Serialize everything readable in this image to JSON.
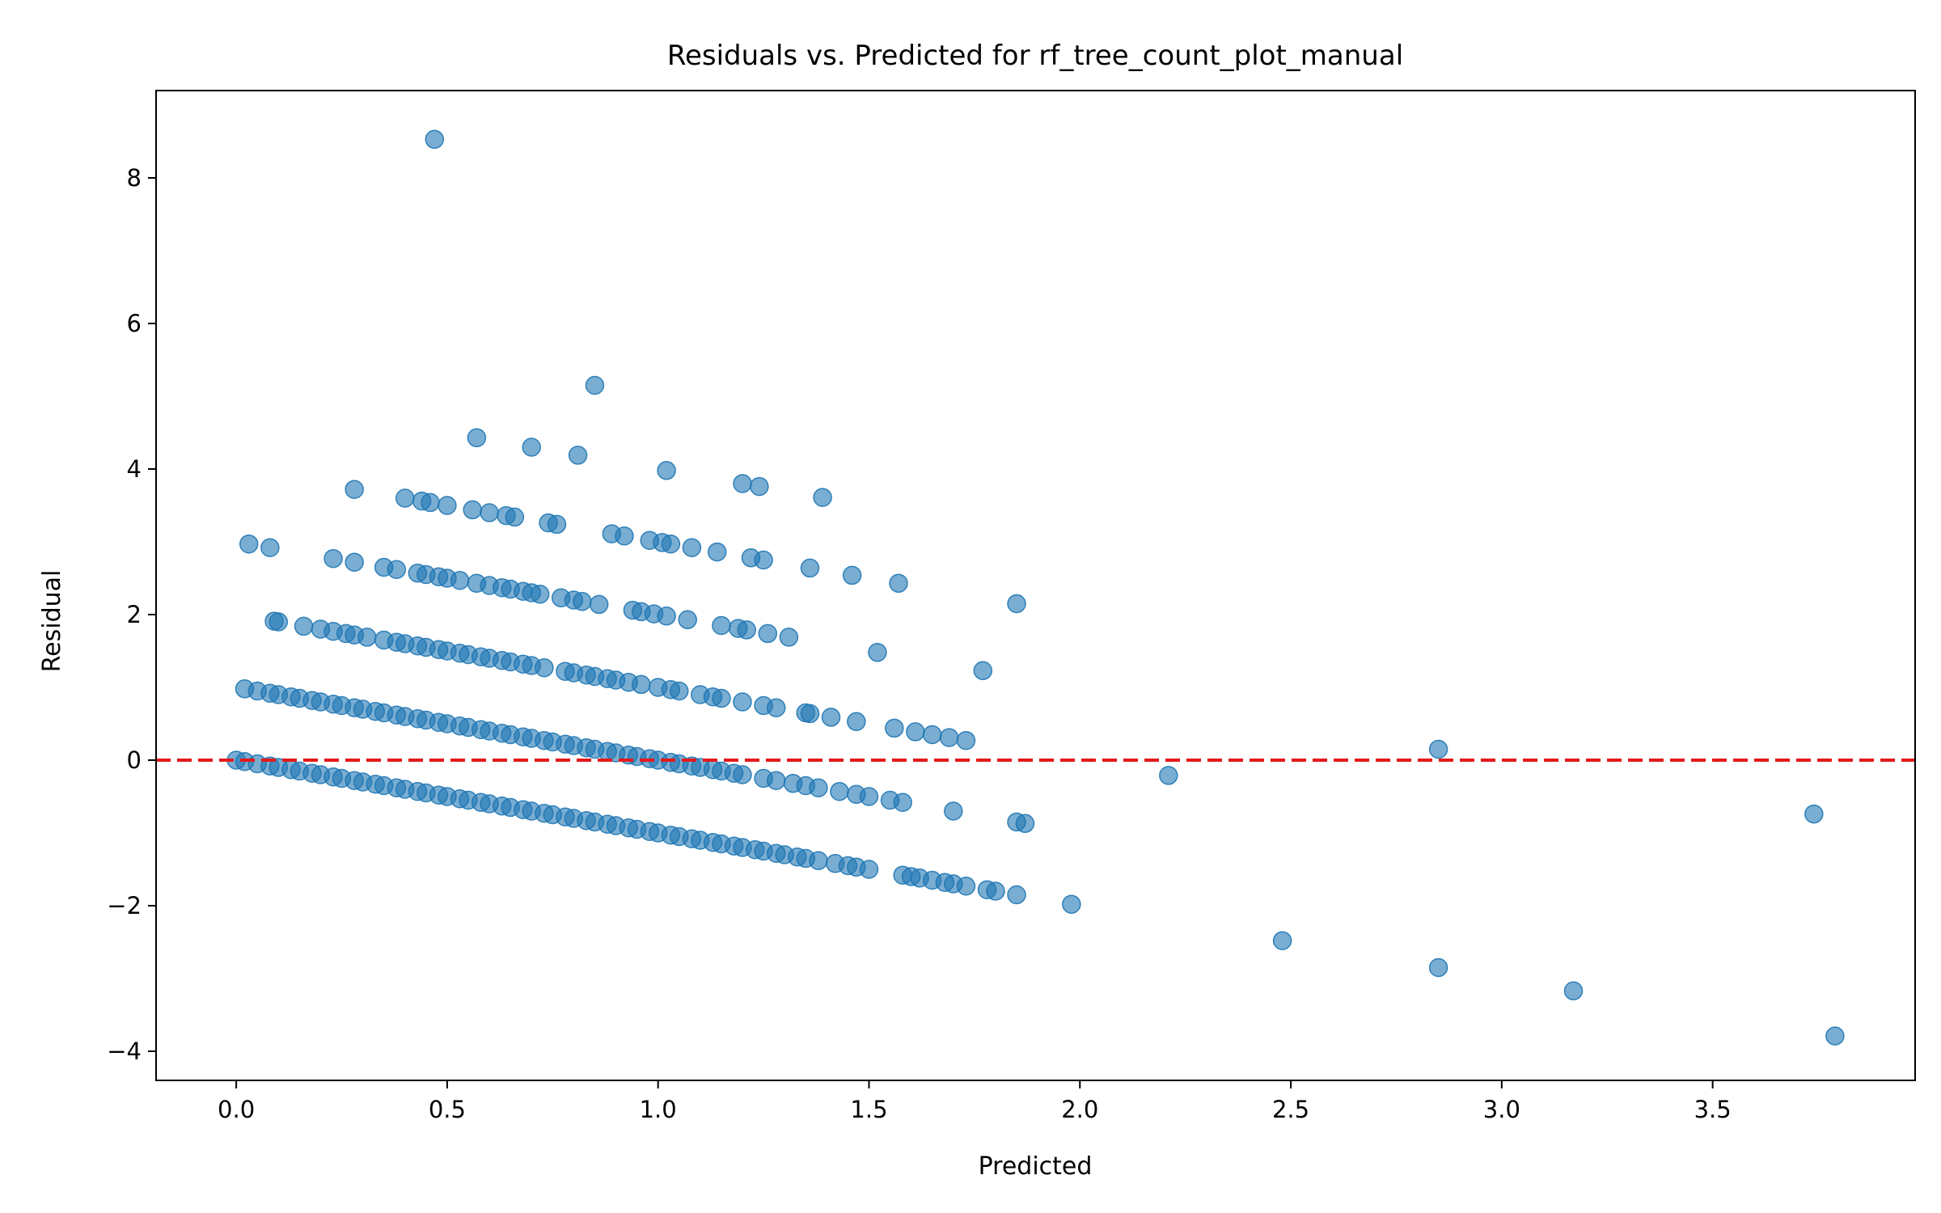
{
  "chart_data": {
    "type": "scatter",
    "title": "Residuals vs. Predicted for rf_tree_count_plot_manual",
    "xlabel": "Predicted",
    "ylabel": "Residual",
    "xlim": [
      -0.19,
      3.98
    ],
    "ylim": [
      -4.4,
      9.2
    ],
    "xticks": [
      0.0,
      0.5,
      1.0,
      1.5,
      2.0,
      2.5,
      3.0,
      3.5
    ],
    "xtick_labels": [
      "0.0",
      "0.5",
      "1.0",
      "1.5",
      "2.0",
      "2.5",
      "3.0",
      "3.5"
    ],
    "yticks": [
      -4,
      -2,
      0,
      2,
      4,
      6,
      8
    ],
    "ytick_labels": [
      "−4",
      "−2",
      "0",
      "2",
      "4",
      "6",
      "8"
    ],
    "grid": false,
    "reference_line": {
      "y": 0,
      "style": "dashed",
      "color": "#e41a1c"
    },
    "marker_color": "#1f77b4",
    "marker_alpha": 0.6,
    "series": [
      {
        "points": [
          [
            0.0,
            0.0
          ],
          [
            0.02,
            -0.02
          ],
          [
            0.05,
            -0.05
          ],
          [
            0.08,
            -0.08
          ],
          [
            0.1,
            -0.1
          ],
          [
            0.13,
            -0.13
          ],
          [
            0.15,
            -0.15
          ],
          [
            0.18,
            -0.18
          ],
          [
            0.2,
            -0.2
          ],
          [
            0.23,
            -0.23
          ],
          [
            0.25,
            -0.25
          ],
          [
            0.28,
            -0.28
          ],
          [
            0.3,
            -0.3
          ],
          [
            0.33,
            -0.33
          ],
          [
            0.35,
            -0.35
          ],
          [
            0.38,
            -0.38
          ],
          [
            0.4,
            -0.4
          ],
          [
            0.43,
            -0.43
          ],
          [
            0.45,
            -0.45
          ],
          [
            0.48,
            -0.48
          ],
          [
            0.5,
            -0.5
          ],
          [
            0.53,
            -0.53
          ],
          [
            0.55,
            -0.55
          ],
          [
            0.58,
            -0.58
          ],
          [
            0.6,
            -0.6
          ],
          [
            0.63,
            -0.63
          ],
          [
            0.65,
            -0.65
          ],
          [
            0.68,
            -0.68
          ],
          [
            0.7,
            -0.7
          ],
          [
            0.73,
            -0.73
          ],
          [
            0.75,
            -0.75
          ],
          [
            0.78,
            -0.78
          ],
          [
            0.8,
            -0.8
          ],
          [
            0.83,
            -0.83
          ],
          [
            0.85,
            -0.85
          ],
          [
            0.88,
            -0.88
          ],
          [
            0.9,
            -0.9
          ],
          [
            0.93,
            -0.93
          ],
          [
            0.95,
            -0.95
          ],
          [
            0.98,
            -0.98
          ],
          [
            1.0,
            -1.0
          ],
          [
            1.03,
            -1.03
          ],
          [
            1.05,
            -1.05
          ],
          [
            1.08,
            -1.08
          ],
          [
            1.1,
            -1.1
          ],
          [
            1.13,
            -1.13
          ],
          [
            1.15,
            -1.15
          ],
          [
            1.18,
            -1.18
          ],
          [
            1.2,
            -1.2
          ],
          [
            1.23,
            -1.23
          ],
          [
            1.25,
            -1.25
          ],
          [
            1.28,
            -1.28
          ],
          [
            1.3,
            -1.3
          ],
          [
            1.33,
            -1.33
          ],
          [
            1.35,
            -1.35
          ],
          [
            1.38,
            -1.38
          ],
          [
            1.42,
            -1.42
          ],
          [
            1.45,
            -1.45
          ],
          [
            1.47,
            -1.47
          ],
          [
            1.5,
            -1.5
          ],
          [
            1.58,
            -1.58
          ],
          [
            1.6,
            -1.6
          ],
          [
            1.62,
            -1.62
          ],
          [
            1.65,
            -1.65
          ],
          [
            1.68,
            -1.68
          ],
          [
            1.7,
            -1.7
          ],
          [
            1.73,
            -1.73
          ],
          [
            1.78,
            -1.78
          ],
          [
            1.8,
            -1.8
          ],
          [
            1.85,
            -1.85
          ],
          [
            1.98,
            -1.98
          ],
          [
            0.02,
            0.98
          ],
          [
            0.05,
            0.95
          ],
          [
            0.08,
            0.92
          ],
          [
            0.1,
            0.9
          ],
          [
            0.13,
            0.87
          ],
          [
            0.15,
            0.85
          ],
          [
            0.18,
            0.82
          ],
          [
            0.2,
            0.8
          ],
          [
            0.23,
            0.77
          ],
          [
            0.25,
            0.75
          ],
          [
            0.28,
            0.72
          ],
          [
            0.3,
            0.7
          ],
          [
            0.33,
            0.67
          ],
          [
            0.35,
            0.65
          ],
          [
            0.38,
            0.62
          ],
          [
            0.4,
            0.6
          ],
          [
            0.43,
            0.57
          ],
          [
            0.45,
            0.55
          ],
          [
            0.48,
            0.52
          ],
          [
            0.5,
            0.5
          ],
          [
            0.53,
            0.47
          ],
          [
            0.55,
            0.45
          ],
          [
            0.58,
            0.42
          ],
          [
            0.6,
            0.4
          ],
          [
            0.63,
            0.37
          ],
          [
            0.65,
            0.35
          ],
          [
            0.68,
            0.32
          ],
          [
            0.7,
            0.3
          ],
          [
            0.73,
            0.27
          ],
          [
            0.75,
            0.25
          ],
          [
            0.78,
            0.22
          ],
          [
            0.8,
            0.2
          ],
          [
            0.83,
            0.17
          ],
          [
            0.85,
            0.15
          ],
          [
            0.88,
            0.12
          ],
          [
            0.9,
            0.1
          ],
          [
            0.93,
            0.07
          ],
          [
            0.95,
            0.05
          ],
          [
            0.98,
            0.02
          ],
          [
            1.0,
            0.0
          ],
          [
            1.03,
            -0.03
          ],
          [
            1.05,
            -0.05
          ],
          [
            1.08,
            -0.08
          ],
          [
            1.1,
            -0.1
          ],
          [
            1.13,
            -0.13
          ],
          [
            1.15,
            -0.15
          ],
          [
            1.18,
            -0.18
          ],
          [
            1.2,
            -0.2
          ],
          [
            1.25,
            -0.25
          ],
          [
            1.28,
            -0.28
          ],
          [
            1.32,
            -0.32
          ],
          [
            1.35,
            -0.35
          ],
          [
            1.38,
            -0.38
          ],
          [
            1.43,
            -0.43
          ],
          [
            1.47,
            -0.47
          ],
          [
            1.5,
            -0.5
          ],
          [
            1.55,
            -0.55
          ],
          [
            1.58,
            -0.58
          ],
          [
            1.7,
            -0.7
          ],
          [
            1.85,
            -0.85
          ],
          [
            1.87,
            -0.87
          ],
          [
            0.09,
            1.91
          ],
          [
            0.1,
            1.9
          ],
          [
            0.16,
            1.84
          ],
          [
            0.2,
            1.8
          ],
          [
            0.23,
            1.77
          ],
          [
            0.26,
            1.74
          ],
          [
            0.28,
            1.72
          ],
          [
            0.31,
            1.69
          ],
          [
            0.35,
            1.65
          ],
          [
            0.38,
            1.62
          ],
          [
            0.4,
            1.6
          ],
          [
            0.43,
            1.57
          ],
          [
            0.45,
            1.55
          ],
          [
            0.48,
            1.52
          ],
          [
            0.5,
            1.5
          ],
          [
            0.53,
            1.47
          ],
          [
            0.55,
            1.45
          ],
          [
            0.58,
            1.42
          ],
          [
            0.6,
            1.4
          ],
          [
            0.63,
            1.37
          ],
          [
            0.65,
            1.35
          ],
          [
            0.68,
            1.32
          ],
          [
            0.7,
            1.3
          ],
          [
            0.73,
            1.27
          ],
          [
            0.78,
            1.22
          ],
          [
            0.8,
            1.2
          ],
          [
            0.83,
            1.17
          ],
          [
            0.85,
            1.15
          ],
          [
            0.88,
            1.12
          ],
          [
            0.9,
            1.1
          ],
          [
            0.93,
            1.07
          ],
          [
            0.96,
            1.04
          ],
          [
            1.0,
            1.0
          ],
          [
            1.03,
            0.97
          ],
          [
            1.05,
            0.95
          ],
          [
            1.1,
            0.9
          ],
          [
            1.13,
            0.87
          ],
          [
            1.15,
            0.85
          ],
          [
            1.2,
            0.8
          ],
          [
            1.25,
            0.75
          ],
          [
            1.28,
            0.72
          ],
          [
            1.35,
            0.65
          ],
          [
            1.36,
            0.64
          ],
          [
            1.41,
            0.59
          ],
          [
            1.47,
            0.53
          ],
          [
            1.56,
            0.44
          ],
          [
            1.61,
            0.39
          ],
          [
            1.65,
            0.35
          ],
          [
            1.69,
            0.31
          ],
          [
            1.73,
            0.27
          ],
          [
            0.28,
            2.72
          ],
          [
            0.35,
            2.65
          ],
          [
            0.38,
            2.62
          ],
          [
            0.43,
            2.57
          ],
          [
            0.45,
            2.55
          ],
          [
            0.48,
            2.52
          ],
          [
            0.5,
            2.5
          ],
          [
            0.53,
            2.47
          ],
          [
            0.57,
            2.43
          ],
          [
            0.6,
            2.4
          ],
          [
            0.63,
            2.37
          ],
          [
            0.65,
            2.35
          ],
          [
            0.68,
            2.32
          ],
          [
            0.7,
            2.3
          ],
          [
            0.72,
            2.28
          ],
          [
            0.77,
            2.23
          ],
          [
            0.8,
            2.2
          ],
          [
            0.82,
            2.18
          ],
          [
            0.86,
            2.14
          ],
          [
            0.94,
            2.06
          ],
          [
            0.96,
            2.04
          ],
          [
            0.99,
            2.01
          ],
          [
            1.02,
            1.98
          ],
          [
            1.07,
            1.93
          ],
          [
            1.15,
            1.85
          ],
          [
            1.19,
            1.81
          ],
          [
            1.21,
            1.79
          ],
          [
            1.26,
            1.74
          ],
          [
            1.31,
            1.69
          ],
          [
            1.52,
            1.48
          ],
          [
            1.77,
            1.23
          ],
          [
            0.03,
            2.97
          ],
          [
            0.08,
            2.92
          ],
          [
            0.23,
            2.77
          ],
          [
            0.4,
            3.6
          ],
          [
            0.44,
            3.56
          ],
          [
            0.46,
            3.54
          ],
          [
            0.5,
            3.5
          ],
          [
            0.56,
            3.44
          ],
          [
            0.6,
            3.4
          ],
          [
            0.64,
            3.36
          ],
          [
            0.66,
            3.34
          ],
          [
            0.74,
            3.26
          ],
          [
            0.76,
            3.24
          ],
          [
            0.89,
            3.11
          ],
          [
            0.92,
            3.08
          ],
          [
            0.98,
            3.02
          ],
          [
            1.01,
            2.99
          ],
          [
            1.03,
            2.97
          ],
          [
            1.08,
            2.92
          ],
          [
            1.14,
            2.86
          ],
          [
            1.22,
            2.78
          ],
          [
            1.25,
            2.75
          ],
          [
            1.36,
            2.64
          ],
          [
            1.46,
            2.54
          ],
          [
            1.57,
            2.43
          ],
          [
            1.85,
            2.15
          ],
          [
            0.28,
            3.72
          ],
          [
            0.57,
            4.43
          ],
          [
            0.7,
            4.3
          ],
          [
            0.81,
            4.19
          ],
          [
            1.02,
            3.98
          ],
          [
            1.2,
            3.8
          ],
          [
            1.24,
            3.76
          ],
          [
            1.39,
            3.61
          ],
          [
            0.85,
            5.15
          ],
          [
            0.47,
            8.53
          ],
          [
            2.21,
            -0.21
          ],
          [
            2.85,
            0.15
          ],
          [
            3.74,
            -0.74
          ],
          [
            2.48,
            -2.48
          ],
          [
            2.85,
            -2.85
          ],
          [
            3.17,
            -3.17
          ],
          [
            3.79,
            -3.79
          ]
        ]
      }
    ]
  }
}
